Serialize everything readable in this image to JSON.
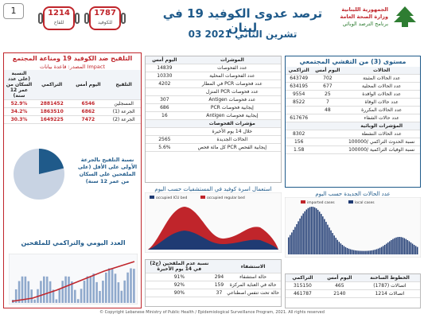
{
  "page_number": "1",
  "deaths_today": {
    "value": "1214",
    "label": "للقاح"
  },
  "deaths_total": {
    "value": "1787",
    "label": "للكوفيد"
  },
  "header": {
    "title": "ترصد عدوى الكوفيد 19 في لبنان",
    "date": "03 تشرين الثاني 2021",
    "ministry_line1": "الجمهورية اللبنانية",
    "ministry_line2": "وزارة الصحة العامة",
    "ministry_line3": "برنامج الترصد الوبائي"
  },
  "vaccination": {
    "title": "التلقيح ضد الكوفيد 19 ومناعة المجتمع",
    "source": "المصدر: قاعدة بيانات Impact",
    "headers": [
      "التلقيح",
      "اليوم أمس",
      "التراكمي",
      "النسبة (على عدد السكان من عمر 12 سنة)"
    ],
    "rows": [
      {
        "label": "المسجلين",
        "today": "6546",
        "cumulative": "2881452",
        "pct": "52.9%"
      },
      {
        "label": "الجرعة (1)",
        "today": "6862",
        "cumulative": "1863510",
        "pct": "34.2%"
      },
      {
        "label": "الجرعة (2)",
        "today": "7472",
        "cumulative": "1649225",
        "pct": "30.3%"
      }
    ],
    "pie_note": "نسبة التلقيح بالجرعة الأولى على الأقل (على الملقحين على السكان من عمر 12 سنة)",
    "daily_title": "العدد اليومي والتراكمي للملقحين"
  },
  "tests": {
    "headers": [
      "الموشرات",
      "اليوم أمس"
    ],
    "rows": [
      {
        "label": "عدد الفحوصات",
        "value": "14839"
      },
      {
        "label": "عدد الفحوصات المحلية",
        "value": "10330"
      },
      {
        "label": "عدد فحوصات PCR في المطار",
        "value": "4202"
      },
      {
        "label": "عدد فحوصات PCR المنزل",
        "value": ""
      },
      {
        "label": "عدد فحوصات Antigen",
        "value": "307"
      },
      {
        "label": "إيجابية فحوصات PCR",
        "value": "686"
      },
      {
        "label": "إيجابية فحوصات Antigen",
        "value": "16"
      }
    ],
    "indicators_title": "مؤشرات الفحوصات",
    "indicators": [
      {
        "label": "خلال 14 يوم الأخيرة",
        "value": ""
      },
      {
        "label": "الحالات الجديدة",
        "value": "2565"
      },
      {
        "label": "إيجابية الفحص PCR كل مائة فحص",
        "value": "5.6%"
      }
    ]
  },
  "community": {
    "title": "مستوى (3) من التفشي المجتمعي",
    "headers": [
      "الحالات",
      "اليوم أمس",
      "التراكمي"
    ],
    "rows": [
      {
        "label": "عدد الحالات المثبتة",
        "today": "702",
        "cumulative": "643749"
      },
      {
        "label": "عدد الحالات المحلية",
        "today": "677",
        "cumulative": "634195"
      },
      {
        "label": "عدد الحالات الوافدة",
        "today": "25",
        "cumulative": "9554"
      },
      {
        "label": "عدد حالات الوفاة",
        "today": "7",
        "cumulative": "8522"
      },
      {
        "label": "عدد الحالات المكررة",
        "today": "48",
        "cumulative": ""
      },
      {
        "label": "عدد حالات الشفاء",
        "today": "",
        "cumulative": "617676"
      }
    ],
    "indicators_title": "المؤشرات الوبائية",
    "indicators": [
      {
        "label": "عدد الحالات النشطة",
        "value": "8302"
      },
      {
        "label": "نسبة الحدوث التراكمي /100000",
        "value": "156"
      },
      {
        "label": "نسبة الوفيات التراكمية /100000",
        "value": "1.58"
      }
    ]
  },
  "beds_chart": {
    "title": "استعمال اسرة كوفيد في المستشفيات حسب اليوم",
    "legend": [
      "occupied ICU bed",
      "occupied regular bed"
    ]
  },
  "cases_chart": {
    "title": "عدد الحالات الجديدة حسب اليوم",
    "legend": [
      "imported cases",
      "local cases"
    ]
  },
  "hospital": {
    "headers": [
      "الاستشفاء",
      "",
      "نسبة عدم الملقحين (ج2) في 14 يوم الأخيرة"
    ],
    "rows": [
      {
        "label": "حالة استشفاء",
        "value": "294",
        "pct": "91%"
      },
      {
        "label": "حالة في العناية المركزة",
        "value": "159",
        "pct": "92%"
      },
      {
        "label": "حالة تحت تنفس اصطناعي",
        "value": "37",
        "pct": "90%"
      }
    ]
  },
  "calls": {
    "headers": [
      "الخطوط الساخنة",
      "اليوم أمس",
      "التراكمي"
    ],
    "rows": [
      {
        "label": "اتصالات (1787)",
        "today": "465",
        "cumulative": "315150"
      },
      {
        "label": "اتصالات 1214",
        "today": "2140",
        "cumulative": "461787"
      }
    ]
  },
  "footer": "© Copyright Lebanese Ministry of Public Health / Epidemiological Surveillance Program, 2021. All rights reserved",
  "colors": {
    "accent": "#c0252b",
    "blue": "#1f5a8a",
    "green": "#2e7d32"
  }
}
